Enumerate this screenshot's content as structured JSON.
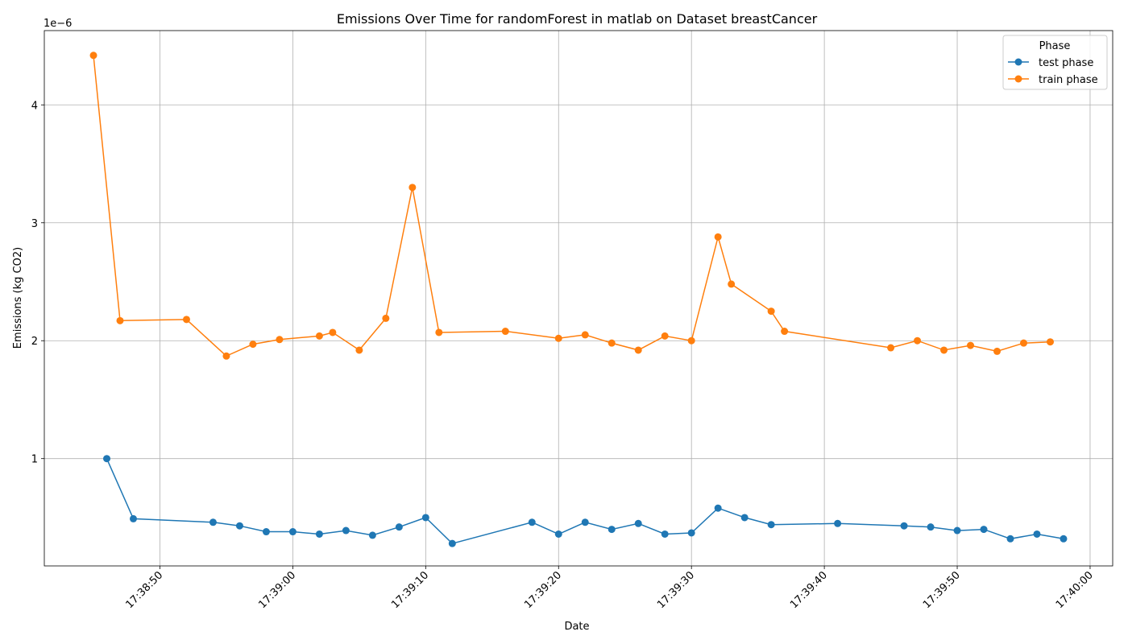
{
  "chart_data": {
    "type": "line",
    "title": "Emissions Over Time for randomForest in matlab on Dataset breastCancer",
    "xlabel": "Date",
    "ylabel": "Emissions (kg CO2)",
    "y_offset_label": "1e−6",
    "y_scale": 1e-06,
    "x_range": [
      "17:38:41.3",
      "17:40:01.7"
    ],
    "ylim": [
      0.09,
      4.63
    ],
    "x_ticks": [
      "17:38:50",
      "17:39:00",
      "17:39:10",
      "17:39:20",
      "17:39:30",
      "17:39:40",
      "17:39:50",
      "17:40:00"
    ],
    "y_ticks": [
      1,
      2,
      3,
      4
    ],
    "grid": true,
    "legend_title": "Phase",
    "legend_position": "top-right",
    "series": [
      {
        "name": "test phase",
        "color": "#1f77b4",
        "points": [
          [
            "17:38:46",
            1.0
          ],
          [
            "17:38:48",
            0.49
          ],
          [
            "17:38:54",
            0.46
          ],
          [
            "17:38:56",
            0.43
          ],
          [
            "17:38:58",
            0.38
          ],
          [
            "17:39:00",
            0.38
          ],
          [
            "17:39:02",
            0.36
          ],
          [
            "17:39:04",
            0.39
          ],
          [
            "17:39:06",
            0.35
          ],
          [
            "17:39:08",
            0.42
          ],
          [
            "17:39:10",
            0.5
          ],
          [
            "17:39:12",
            0.28
          ],
          [
            "17:39:18",
            0.46
          ],
          [
            "17:39:20",
            0.36
          ],
          [
            "17:39:22",
            0.46
          ],
          [
            "17:39:24",
            0.4
          ],
          [
            "17:39:26",
            0.45
          ],
          [
            "17:39:28",
            0.36
          ],
          [
            "17:39:30",
            0.37
          ],
          [
            "17:39:32",
            0.58
          ],
          [
            "17:39:34",
            0.5
          ],
          [
            "17:39:36",
            0.44
          ],
          [
            "17:39:41",
            0.45
          ],
          [
            "17:39:46",
            0.43
          ],
          [
            "17:39:48",
            0.42
          ],
          [
            "17:39:50",
            0.39
          ],
          [
            "17:39:52",
            0.4
          ],
          [
            "17:39:54",
            0.32
          ],
          [
            "17:39:56",
            0.36
          ],
          [
            "17:39:58",
            0.32
          ]
        ]
      },
      {
        "name": "train phase",
        "color": "#ff7f0e",
        "points": [
          [
            "17:38:45",
            4.42
          ],
          [
            "17:38:47",
            2.17
          ],
          [
            "17:38:52",
            2.18
          ],
          [
            "17:38:55",
            1.87
          ],
          [
            "17:38:57",
            1.97
          ],
          [
            "17:38:59",
            2.01
          ],
          [
            "17:39:02",
            2.04
          ],
          [
            "17:39:03",
            2.07
          ],
          [
            "17:39:05",
            1.92
          ],
          [
            "17:39:07",
            2.19
          ],
          [
            "17:39:09",
            3.3
          ],
          [
            "17:39:11",
            2.07
          ],
          [
            "17:39:16",
            2.08
          ],
          [
            "17:39:20",
            2.02
          ],
          [
            "17:39:22",
            2.05
          ],
          [
            "17:39:24",
            1.98
          ],
          [
            "17:39:26",
            1.92
          ],
          [
            "17:39:28",
            2.04
          ],
          [
            "17:39:30",
            2.0
          ],
          [
            "17:39:32",
            2.88
          ],
          [
            "17:39:33",
            2.48
          ],
          [
            "17:39:36",
            2.25
          ],
          [
            "17:39:37",
            2.08
          ],
          [
            "17:39:45",
            1.94
          ],
          [
            "17:39:47",
            2.0
          ],
          [
            "17:39:49",
            1.92
          ],
          [
            "17:39:51",
            1.96
          ],
          [
            "17:39:53",
            1.91
          ],
          [
            "17:39:55",
            1.98
          ],
          [
            "17:39:57",
            1.99
          ]
        ]
      }
    ]
  }
}
